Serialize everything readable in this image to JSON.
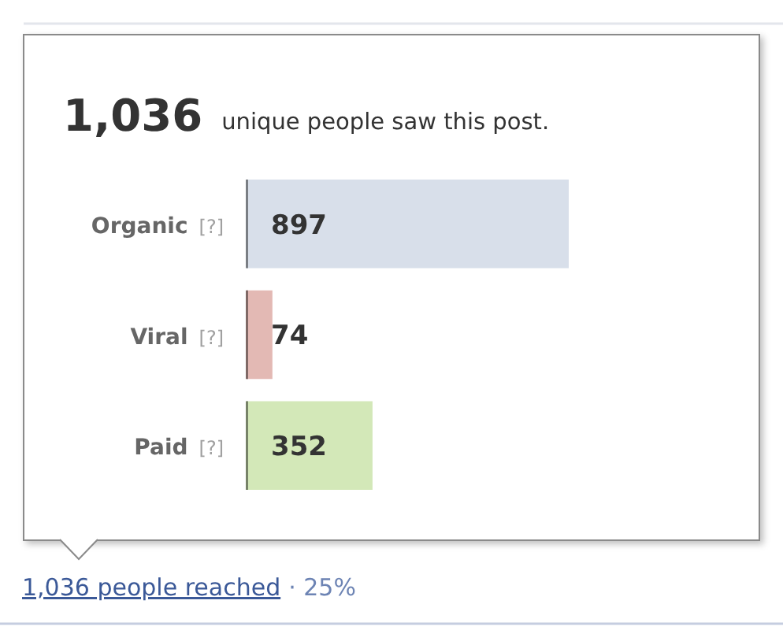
{
  "chart_data": {
    "type": "bar",
    "orientation": "horizontal",
    "title": "1,036",
    "subtitle": "unique people saw this post.",
    "categories": [
      "Organic [?]",
      "Viral [?]",
      "Paid [?]"
    ],
    "values": [
      897,
      74,
      352
    ],
    "colors": [
      "#d8dfea",
      "#e3b9b4",
      "#d3e8b8"
    ],
    "data_labels": true,
    "annotations": [
      "1,036 people reached",
      "· 25%"
    ]
  }
}
